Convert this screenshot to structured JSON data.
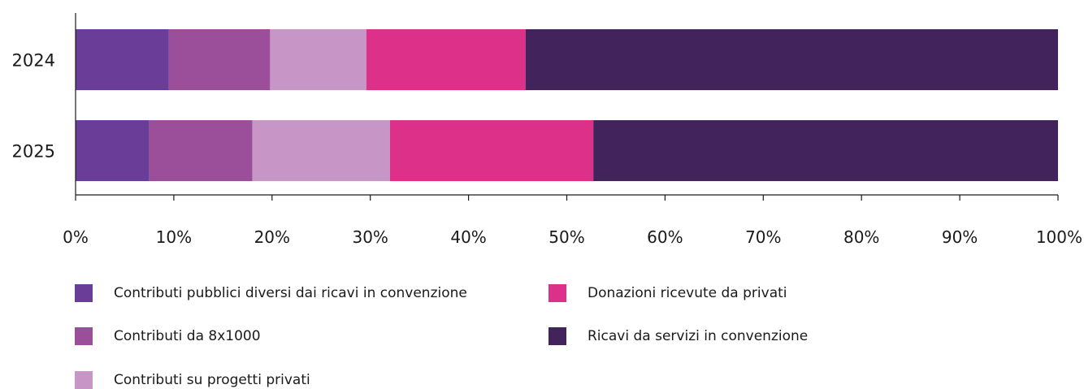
{
  "chart_data": {
    "type": "bar",
    "orientation": "horizontal",
    "stacked": true,
    "normalized": true,
    "categories": [
      "2024",
      "2025"
    ],
    "series": [
      {
        "name": "Contributi pubblici diversi dai ricavi in convenzione",
        "color": "#6a3d99",
        "values": [
          9.5,
          7.5
        ]
      },
      {
        "name": "Contributi da 8x1000",
        "color": "#9b4f9b",
        "values": [
          10.3,
          10.5
        ]
      },
      {
        "name": "Contributi su progetti privati",
        "color": "#c896c6",
        "values": [
          9.8,
          14.0
        ]
      },
      {
        "name": "Donazioni ricevute da privati",
        "color": "#dd3189",
        "values": [
          16.2,
          20.7
        ]
      },
      {
        "name": "Ricavi da servizi in convenzione",
        "color": "#43235c",
        "values": [
          54.2,
          47.3
        ]
      }
    ],
    "x_ticks": [
      "0%",
      "10%",
      "20%",
      "30%",
      "40%",
      "50%",
      "60%",
      "70%",
      "80%",
      "90%",
      "100%"
    ],
    "xlim": [
      0,
      100
    ],
    "title": "",
    "xlabel": "",
    "ylabel": "",
    "grid": false,
    "legend_position": "bottom"
  }
}
